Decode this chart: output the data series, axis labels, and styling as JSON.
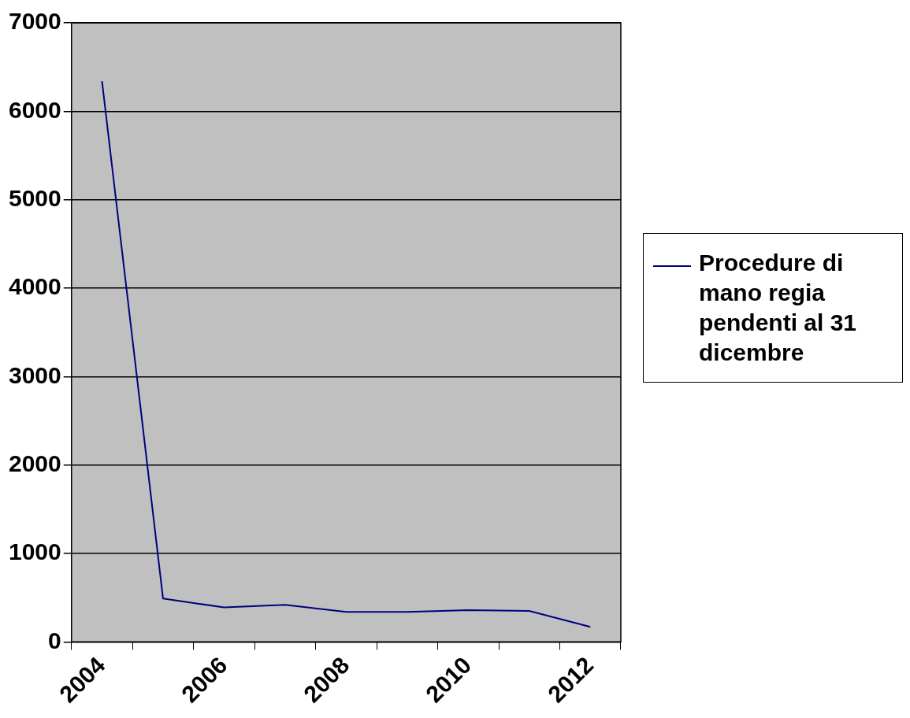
{
  "chart_data": {
    "type": "line",
    "categories": [
      "2004",
      null,
      "2006",
      null,
      "2008",
      null,
      "2010",
      null,
      "2012"
    ],
    "series": [
      {
        "name": "Procedure di mano regia pendenti al 31 dicembre",
        "color": "#000080",
        "values": [
          6340,
          490,
          390,
          420,
          340,
          340,
          360,
          350,
          170
        ]
      }
    ],
    "ylim": [
      0,
      7000
    ],
    "yticks": [
      0,
      1000,
      2000,
      3000,
      4000,
      5000,
      6000,
      7000
    ],
    "grid": "y",
    "legend": "right",
    "marker": "none",
    "line_style": "solid"
  }
}
